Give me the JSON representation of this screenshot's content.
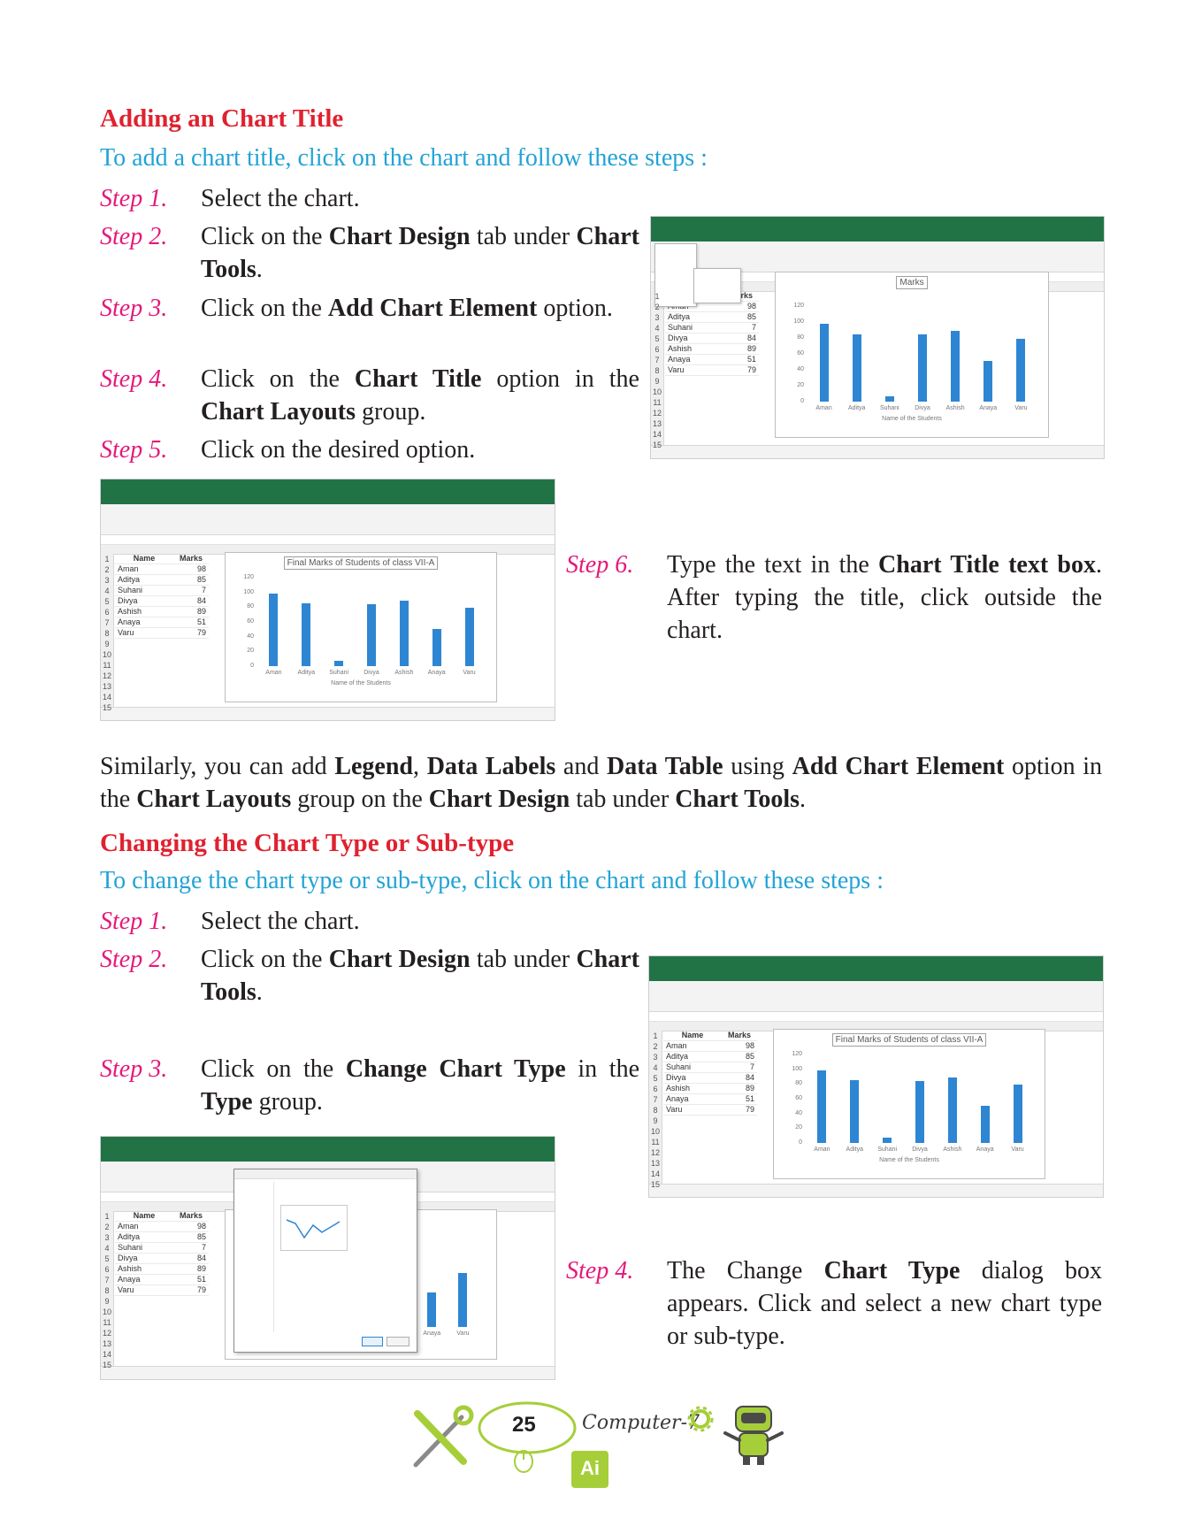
{
  "section1": {
    "heading": "Adding an Chart Title",
    "intro": "To add a chart title, click on the chart and follow these steps :",
    "steps": [
      {
        "label": "Step 1.",
        "parts": [
          [
            "Select the chart.",
            0
          ]
        ]
      },
      {
        "label": "Step 2.",
        "parts": [
          [
            "Click on the ",
            0
          ],
          [
            "Chart Design",
            1
          ],
          [
            " tab under ",
            0
          ],
          [
            "Chart Tools",
            1
          ],
          [
            ".",
            0
          ]
        ]
      },
      {
        "label": "Step 3.",
        "parts": [
          [
            "Click on the ",
            0
          ],
          [
            "Add Chart Element",
            1
          ],
          [
            " option.",
            0
          ]
        ]
      },
      {
        "label": "Step 4.",
        "parts": [
          [
            "Click on the ",
            0
          ],
          [
            "Chart Title",
            1
          ],
          [
            " option in the ",
            0
          ],
          [
            "Chart Layouts",
            1
          ],
          [
            " group.",
            0
          ]
        ]
      },
      {
        "label": "Step 5.",
        "parts": [
          [
            "Click on the desired option.",
            0
          ]
        ]
      },
      {
        "label": "Step 6.",
        "parts": [
          [
            "Type the text in the ",
            0
          ],
          [
            "Chart Title text box",
            1
          ],
          [
            ". After typing the title, click outside the chart.",
            0
          ]
        ]
      }
    ]
  },
  "similarly": [
    [
      "Similarly, you can add ",
      0
    ],
    [
      "Legend",
      1
    ],
    [
      ", ",
      0
    ],
    [
      "Data Labels",
      1
    ],
    [
      " and ",
      0
    ],
    [
      "Data Table",
      1
    ],
    [
      " using ",
      0
    ],
    [
      "Add Chart Element",
      1
    ],
    [
      " option in the ",
      0
    ],
    [
      "Chart Layouts",
      1
    ],
    [
      " group on the ",
      0
    ],
    [
      "Chart Design",
      1
    ],
    [
      " tab under ",
      0
    ],
    [
      "Chart Tools",
      1
    ],
    [
      ".",
      0
    ]
  ],
  "section2": {
    "heading": "Changing the Chart Type or Sub-type",
    "intro": "To change the chart type or sub-type, click on the chart and follow these steps :",
    "steps": [
      {
        "label": "Step 1.",
        "parts": [
          [
            "Select the chart.",
            0
          ]
        ]
      },
      {
        "label": "Step 2.",
        "parts": [
          [
            "Click on the ",
            0
          ],
          [
            "Chart Design",
            1
          ],
          [
            " tab under ",
            0
          ],
          [
            "Chart Tools",
            1
          ],
          [
            ".",
            0
          ]
        ]
      },
      {
        "label": "Step 3.",
        "parts": [
          [
            "Click on the ",
            0
          ],
          [
            "Change Chart Type",
            1
          ],
          [
            " in the ",
            0
          ],
          [
            "Type",
            1
          ],
          [
            " group.",
            0
          ]
        ]
      },
      {
        "label": "Step 4.",
        "parts": [
          [
            "The Change ",
            0
          ],
          [
            "Chart Type",
            1
          ],
          [
            " dialog box appears. Click and select a new chart type or sub-type.",
            0
          ]
        ]
      }
    ]
  },
  "sheet": {
    "col_name": "Name",
    "col_marks": "Marks",
    "rows": [
      [
        "Aman",
        "98"
      ],
      [
        "Aditya",
        "85"
      ],
      [
        "Suhani",
        "7"
      ],
      [
        "Divya",
        "84"
      ],
      [
        "Ashish",
        "89"
      ],
      [
        "Anaya",
        "51"
      ],
      [
        "Varu",
        "79"
      ]
    ],
    "row_numbers": [
      "1",
      "2",
      "3",
      "4",
      "5",
      "6",
      "7",
      "8",
      "9",
      "10",
      "11",
      "12",
      "13",
      "14",
      "15"
    ]
  },
  "chart_data": {
    "type": "bar",
    "categories": [
      "Aman",
      "Aditya",
      "Suhani",
      "Divya",
      "Ashish",
      "Anaya",
      "Varu"
    ],
    "values": [
      98,
      85,
      7,
      84,
      89,
      51,
      79
    ],
    "title": "Final Marks of Students of class VII-A",
    "placeholder_title": "Marks",
    "xlabel": "Name of the Students",
    "ylabel": "",
    "ylim": [
      0,
      120
    ],
    "yticks": [
      "120",
      "100",
      "80",
      "60",
      "40",
      "20",
      "0"
    ],
    "grid": false
  },
  "footer": {
    "page_number": "25",
    "brand": "Computer-7",
    "logo": "Ai",
    "colors": {
      "accent": "#a6ce39",
      "brand_dark": "#3a3a3a"
    }
  },
  "colors": {
    "heading": "#e0212f",
    "intro": "#22a3d6",
    "step_label": "#e4197a",
    "excel_green": "#217346",
    "bar": "#2e86d3"
  }
}
